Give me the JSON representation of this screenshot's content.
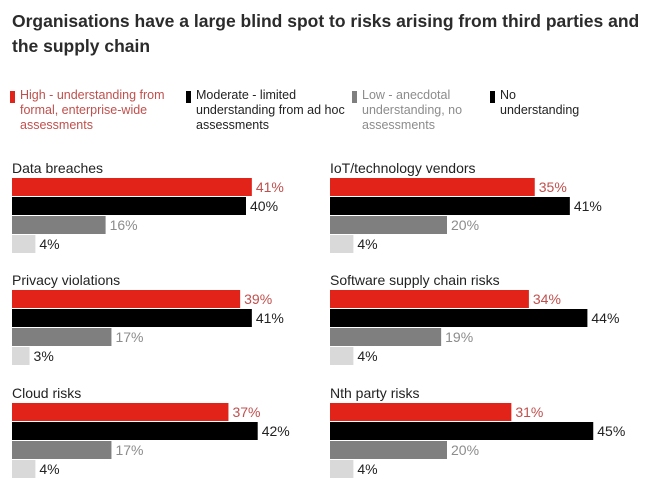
{
  "title": "Organisations have a large blind spot to risks arising from third parties and the supply chain",
  "colors": {
    "high": "#e2231a",
    "moderate": "#000000",
    "low": "#7f7f7f",
    "none": "#d9d9d9",
    "high_label": "#c0504d",
    "low_label": "#8c8c8c",
    "dark_label": "#222222"
  },
  "chart_data": {
    "type": "bar",
    "orientation": "horizontal",
    "title": "Organisations have a large blind spot to risks arising from third parties and the supply chain",
    "unit": "%",
    "legend": [
      {
        "key": "high",
        "label": "High - understanding from formal, enterprise-wide assessments"
      },
      {
        "key": "moderate",
        "label": "Moderate - limited understanding from ad hoc assessments"
      },
      {
        "key": "low",
        "label": "Low - anecdotal understanding, no assessments"
      },
      {
        "key": "none",
        "label": "No understanding"
      }
    ],
    "panels": [
      {
        "category": "Data breaches",
        "values": [
          41,
          40,
          16,
          4
        ],
        "labels": [
          "41%",
          "40%",
          "16%",
          "4%"
        ]
      },
      {
        "category": "IoT/technology vendors",
        "values": [
          35,
          41,
          20,
          4
        ],
        "labels": [
          "35%",
          "41%",
          "20%",
          "4%"
        ]
      },
      {
        "category": "Privacy violations",
        "values": [
          39,
          41,
          17,
          3
        ],
        "labels": [
          "39%",
          "41%",
          "17%",
          "3%"
        ]
      },
      {
        "category": "Software supply chain risks",
        "values": [
          34,
          44,
          19,
          4
        ],
        "labels": [
          "34%",
          "44%",
          "19%",
          "4%"
        ]
      },
      {
        "category": "Cloud risks",
        "values": [
          37,
          42,
          17,
          4
        ],
        "labels": [
          "37%",
          "42%",
          "17%",
          "4%"
        ]
      },
      {
        "category": "Nth party risks",
        "values": [
          31,
          45,
          20,
          4
        ],
        "labels": [
          "31%",
          "45%",
          "20%",
          "4%"
        ]
      }
    ]
  }
}
